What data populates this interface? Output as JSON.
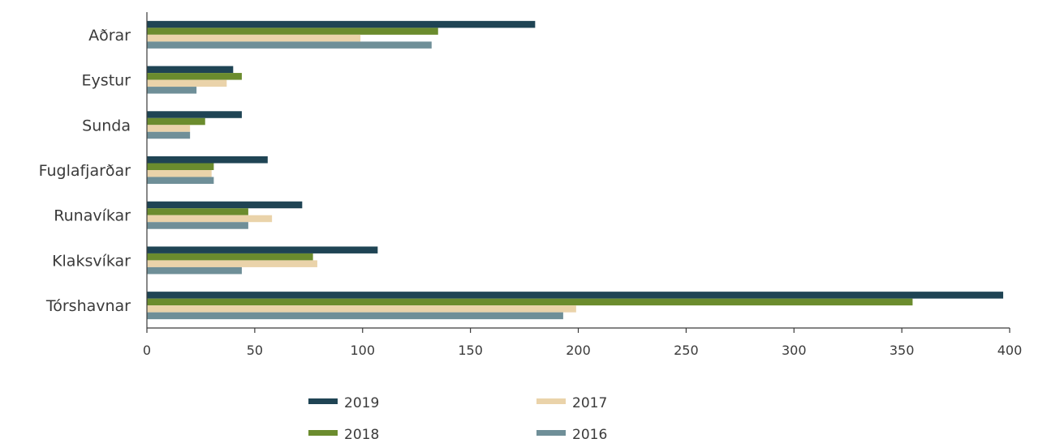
{
  "chart_data": {
    "type": "bar",
    "orientation": "horizontal",
    "categories": [
      "Aðrar",
      "Eystur",
      "Sunda",
      "Fuglafjarðar",
      "Runavíkar",
      "Klaksvíkar",
      "Tórshavnar"
    ],
    "series": [
      {
        "name": "2019",
        "color": "#1f4454",
        "values": [
          180,
          40,
          44,
          56,
          72,
          107,
          397
        ]
      },
      {
        "name": "2018",
        "color": "#6b8c2e",
        "values": [
          135,
          44,
          27,
          31,
          47,
          77,
          355
        ]
      },
      {
        "name": "2017",
        "color": "#ead3aa",
        "values": [
          99,
          37,
          20,
          30,
          58,
          79,
          199
        ]
      },
      {
        "name": "2016",
        "color": "#6f8f98",
        "values": [
          132,
          23,
          20,
          31,
          47,
          44,
          193
        ]
      }
    ],
    "xlim": [
      0,
      400
    ],
    "xticks": [
      0,
      50,
      100,
      150,
      200,
      250,
      300,
      350,
      400
    ],
    "legend_position": "bottom",
    "legend_order": [
      "2019",
      "2017",
      "2018",
      "2016"
    ],
    "grid": false
  }
}
